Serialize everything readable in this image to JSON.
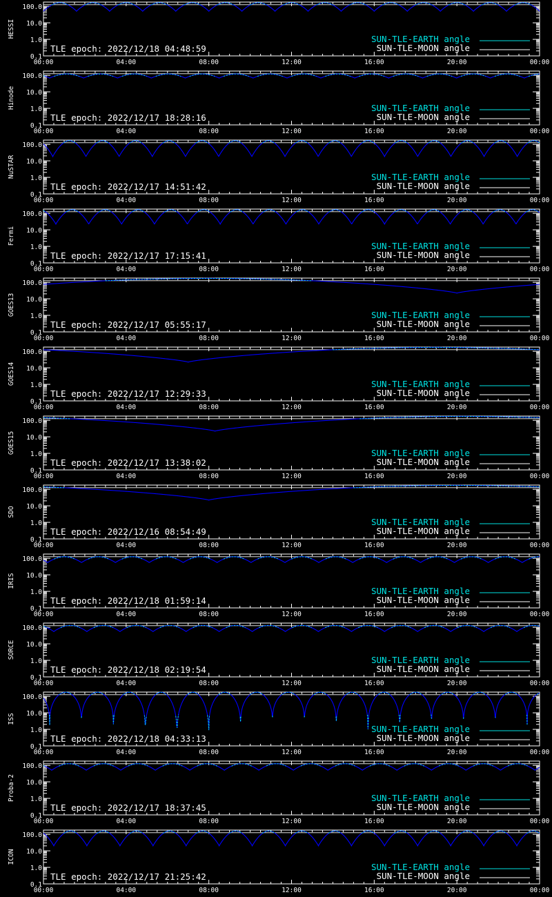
{
  "legend": {
    "earth_label": "SUN-TLE-EARTH angle",
    "moon_label": "SUN-TLE-MOON angle",
    "earth_color": "#00e5e5",
    "moon_color": "#ffffff",
    "trace_color": "#0000ff"
  },
  "chart_data": [
    {
      "type": "line",
      "ylabel": "HESSI",
      "epoch": "TLE epoch: 2022/12/18 04:48:59",
      "y_scale": "log",
      "ylim": [
        0.1,
        180
      ],
      "x": [
        "00:00",
        "04:00",
        "08:00",
        "12:00",
        "16:00",
        "20:00",
        "00:00"
      ],
      "yticks": [
        "100.0",
        "10.0",
        "1.0",
        "0.1"
      ],
      "series": [
        {
          "name": "SUN-TLE-EARTH angle",
          "kind": "orbital",
          "period_h": 1.6,
          "max_deg": 165,
          "min_deg": 50,
          "phase_h": 0.0
        },
        {
          "name": "SUN-TLE-MOON angle",
          "kind": "constant",
          "deg": 125
        }
      ]
    },
    {
      "type": "line",
      "ylabel": "Hinode",
      "epoch": "TLE epoch: 2022/12/17 18:28:16",
      "y_scale": "log",
      "ylim": [
        0.1,
        180
      ],
      "x": [
        "00:00",
        "04:00",
        "08:00",
        "12:00",
        "16:00",
        "20:00",
        "00:00"
      ],
      "yticks": [
        "100.0",
        "10.0",
        "1.0",
        "0.1"
      ],
      "series": [
        {
          "name": "SUN-TLE-EARTH angle",
          "kind": "orbital",
          "period_h": 1.64,
          "max_deg": 120,
          "min_deg": 68,
          "phase_h": 0.3
        },
        {
          "name": "SUN-TLE-MOON angle",
          "kind": "constant",
          "deg": 125
        }
      ]
    },
    {
      "type": "line",
      "ylabel": "NuSTAR",
      "epoch": "TLE epoch: 2022/12/17 14:51:42",
      "y_scale": "log",
      "ylim": [
        0.1,
        180
      ],
      "x": [
        "00:00",
        "04:00",
        "08:00",
        "12:00",
        "16:00",
        "20:00",
        "00:00"
      ],
      "yticks": [
        "100.0",
        "10.0",
        "1.0",
        "0.1"
      ],
      "series": [
        {
          "name": "SUN-TLE-EARTH angle",
          "kind": "orbital",
          "period_h": 1.605,
          "max_deg": 165,
          "min_deg": 18,
          "phase_h": 0.45
        },
        {
          "name": "SUN-TLE-MOON angle",
          "kind": "constant",
          "deg": 125
        }
      ]
    },
    {
      "type": "line",
      "ylabel": "Fermi",
      "epoch": "TLE epoch: 2022/12/17 17:15:41",
      "y_scale": "log",
      "ylim": [
        0.1,
        180
      ],
      "x": [
        "00:00",
        "04:00",
        "08:00",
        "12:00",
        "16:00",
        "20:00",
        "00:00"
      ],
      "yticks": [
        "100.0",
        "10.0",
        "1.0",
        "0.1"
      ],
      "series": [
        {
          "name": "SUN-TLE-EARTH angle",
          "kind": "orbital",
          "period_h": 1.59,
          "max_deg": 165,
          "min_deg": 22,
          "phase_h": 0.6
        },
        {
          "name": "SUN-TLE-MOON angle",
          "kind": "constant",
          "deg": 125
        }
      ]
    },
    {
      "type": "line",
      "ylabel": "GOES13",
      "epoch": "TLE epoch: 2022/12/17 05:55:17",
      "y_scale": "log",
      "ylim": [
        0.1,
        180
      ],
      "x": [
        "00:00",
        "04:00",
        "08:00",
        "12:00",
        "16:00",
        "20:00",
        "00:00"
      ],
      "yticks": [
        "100.0",
        "10.0",
        "1.0",
        "0.1"
      ],
      "series": [
        {
          "name": "SUN-TLE-EARTH angle",
          "kind": "geo",
          "max_deg": 172,
          "min_deg": 22,
          "min_h": 20.0
        },
        {
          "name": "SUN-TLE-MOON angle",
          "kind": "constant",
          "deg": 125
        }
      ]
    },
    {
      "type": "line",
      "ylabel": "GOES14",
      "epoch": "TLE epoch: 2022/12/17 12:29:33",
      "y_scale": "log",
      "ylim": [
        0.1,
        180
      ],
      "x": [
        "00:00",
        "04:00",
        "08:00",
        "12:00",
        "16:00",
        "20:00",
        "00:00"
      ],
      "yticks": [
        "100.0",
        "10.0",
        "1.0",
        "0.1"
      ],
      "series": [
        {
          "name": "SUN-TLE-EARTH angle",
          "kind": "geo",
          "max_deg": 172,
          "min_deg": 22,
          "min_h": 7.0
        },
        {
          "name": "SUN-TLE-MOON angle",
          "kind": "constant",
          "deg": 125
        }
      ]
    },
    {
      "type": "line",
      "ylabel": "GOES15",
      "epoch": "TLE epoch: 2022/12/17 13:38:02",
      "y_scale": "log",
      "ylim": [
        0.1,
        180
      ],
      "x": [
        "00:00",
        "04:00",
        "08:00",
        "12:00",
        "16:00",
        "20:00",
        "00:00"
      ],
      "yticks": [
        "100.0",
        "10.0",
        "1.0",
        "0.1"
      ],
      "series": [
        {
          "name": "SUN-TLE-EARTH angle",
          "kind": "geo",
          "max_deg": 172,
          "min_deg": 22,
          "min_h": 8.3
        },
        {
          "name": "SUN-TLE-MOON angle",
          "kind": "constant",
          "deg": 125
        }
      ]
    },
    {
      "type": "line",
      "ylabel": "SDO",
      "epoch": "TLE epoch: 2022/12/16 08:54:49",
      "y_scale": "log",
      "ylim": [
        0.1,
        180
      ],
      "x": [
        "00:00",
        "04:00",
        "08:00",
        "12:00",
        "16:00",
        "20:00",
        "00:00"
      ],
      "yticks": [
        "100.0",
        "10.0",
        "1.0",
        "0.1"
      ],
      "series": [
        {
          "name": "SUN-TLE-EARTH angle",
          "kind": "geo",
          "max_deg": 172,
          "min_deg": 22,
          "min_h": 8.0
        },
        {
          "name": "SUN-TLE-MOON angle",
          "kind": "constant",
          "deg": 125
        }
      ]
    },
    {
      "type": "line",
      "ylabel": "IRIS",
      "epoch": "TLE epoch: 2022/12/18 01:59:14",
      "y_scale": "log",
      "ylim": [
        0.1,
        180
      ],
      "x": [
        "00:00",
        "04:00",
        "08:00",
        "12:00",
        "16:00",
        "20:00",
        "00:00"
      ],
      "yticks": [
        "100.0",
        "10.0",
        "1.0",
        "0.1"
      ],
      "series": [
        {
          "name": "SUN-TLE-EARTH angle",
          "kind": "orbital",
          "period_h": 1.64,
          "max_deg": 125,
          "min_deg": 55,
          "phase_h": 0.2
        },
        {
          "name": "SUN-TLE-MOON angle",
          "kind": "constant",
          "deg": 125
        }
      ]
    },
    {
      "type": "line",
      "ylabel": "SORCE",
      "epoch": "TLE epoch: 2022/12/18 02:19:54",
      "y_scale": "log",
      "ylim": [
        0.1,
        180
      ],
      "x": [
        "00:00",
        "04:00",
        "08:00",
        "12:00",
        "16:00",
        "20:00",
        "00:00"
      ],
      "yticks": [
        "100.0",
        "10.0",
        "1.0",
        "0.1"
      ],
      "series": [
        {
          "name": "SUN-TLE-EARTH angle",
          "kind": "orbital",
          "period_h": 1.6,
          "max_deg": 130,
          "min_deg": 55,
          "phase_h": 0.5
        },
        {
          "name": "SUN-TLE-MOON angle",
          "kind": "constant",
          "deg": 125
        }
      ]
    },
    {
      "type": "line",
      "ylabel": "ISS",
      "epoch": "TLE epoch: 2022/12/18 04:33:13",
      "y_scale": "log",
      "ylim": [
        0.1,
        180
      ],
      "x": [
        "00:00",
        "04:00",
        "08:00",
        "12:00",
        "16:00",
        "20:00",
        "00:00"
      ],
      "yticks": [
        "100.0",
        "10.0",
        "1.0",
        "0.1"
      ],
      "series": [
        {
          "name": "SUN-TLE-EARTH angle",
          "kind": "orbital_spike",
          "period_h": 1.54,
          "max_deg": 175,
          "phase_h": 0.3,
          "dips_deg": [
            1.8,
            2.0,
            0.8,
            0.3,
            0.3,
            0.9,
            1.8,
            2.6,
            1.8,
            1.0,
            0.8,
            1.2,
            2.0,
            1.7,
            1.9,
            2.3
          ]
        },
        {
          "name": "SUN-TLE-MOON angle",
          "kind": "constant",
          "deg": 125
        }
      ]
    },
    {
      "type": "line",
      "ylabel": "Proba-2",
      "epoch": "TLE epoch: 2022/12/17 18:37:45",
      "y_scale": "log",
      "ylim": [
        0.1,
        180
      ],
      "x": [
        "00:00",
        "04:00",
        "08:00",
        "12:00",
        "16:00",
        "20:00",
        "00:00"
      ],
      "yticks": [
        "100.0",
        "10.0",
        "1.0",
        "0.1"
      ],
      "series": [
        {
          "name": "SUN-TLE-EARTH angle",
          "kind": "orbital",
          "period_h": 1.67,
          "max_deg": 125,
          "min_deg": 50,
          "phase_h": 0.4
        },
        {
          "name": "SUN-TLE-MOON angle",
          "kind": "constant",
          "deg": 125
        }
      ]
    },
    {
      "type": "line",
      "ylabel": "ICON",
      "epoch": "TLE epoch: 2022/12/17 21:25:42",
      "y_scale": "log",
      "ylim": [
        0.1,
        180
      ],
      "x": [
        "00:00",
        "04:00",
        "08:00",
        "12:00",
        "16:00",
        "20:00",
        "00:00"
      ],
      "yticks": [
        "100.0",
        "10.0",
        "1.0",
        "0.1"
      ],
      "series": [
        {
          "name": "SUN-TLE-EARTH angle",
          "kind": "orbital",
          "period_h": 1.6,
          "max_deg": 160,
          "min_deg": 20,
          "phase_h": 0.5
        },
        {
          "name": "SUN-TLE-MOON angle",
          "kind": "constant",
          "deg": 125
        }
      ]
    }
  ]
}
